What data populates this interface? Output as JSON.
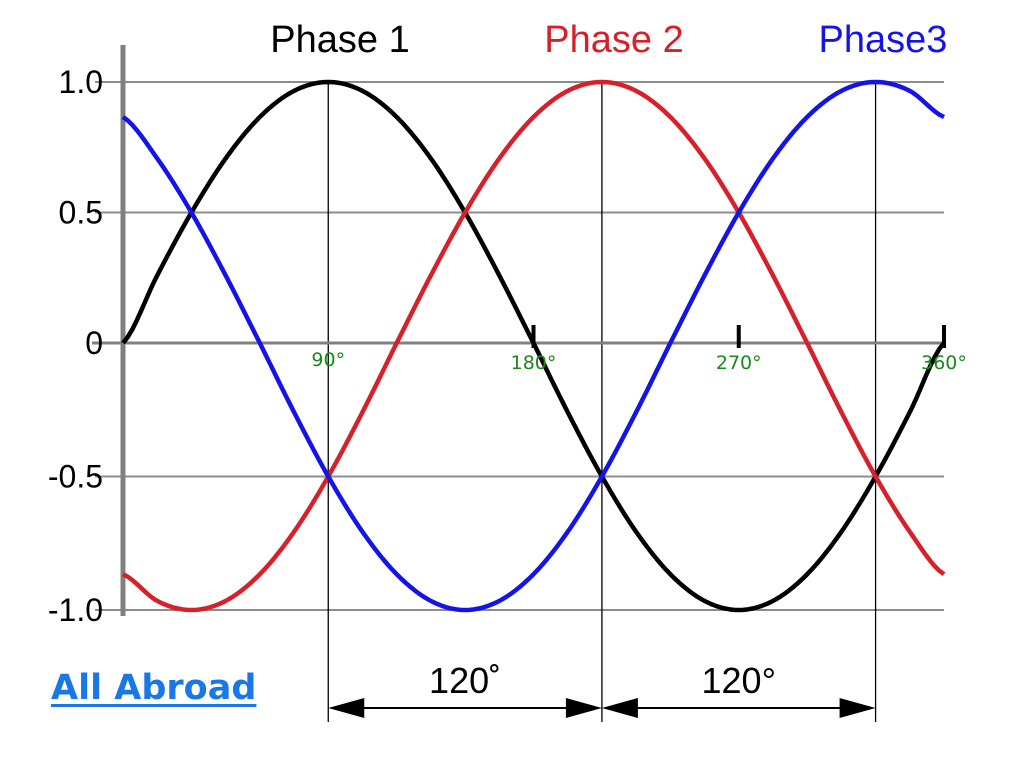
{
  "brand": {
    "link_text": "All Abroad"
  },
  "chart_data": {
    "type": "line",
    "title": "",
    "xlabel": "",
    "ylabel": "",
    "y_tick_labels": [
      "1.0",
      "0.5",
      "0",
      "-0.5",
      "-1.0"
    ],
    "y_ticks": [
      1.0,
      0.5,
      0,
      -0.5,
      -1.0
    ],
    "ylim": [
      -1.0,
      1.0
    ],
    "xlim": [
      0,
      360
    ],
    "x_ticks": [
      {
        "value": 90,
        "label": "90°"
      },
      {
        "value": 180,
        "label": "180°"
      },
      {
        "value": 270,
        "label": "270°"
      },
      {
        "value": 360,
        "label": "360°"
      }
    ],
    "grid": true,
    "legend_position": "top",
    "x": [
      0,
      15,
      30,
      45,
      60,
      75,
      90,
      105,
      120,
      135,
      150,
      165,
      180,
      195,
      210,
      225,
      240,
      255,
      270,
      285,
      300,
      315,
      330,
      345,
      360
    ],
    "series": [
      {
        "name": "Phase 1",
        "color": "#000000",
        "values": [
          0,
          0.259,
          0.5,
          0.707,
          0.866,
          0.966,
          1,
          0.966,
          0.866,
          0.707,
          0.5,
          0.259,
          0,
          -0.259,
          -0.5,
          -0.707,
          -0.866,
          -0.966,
          -1,
          -0.966,
          -0.866,
          -0.707,
          -0.5,
          -0.259,
          0
        ]
      },
      {
        "name": "Phase 2",
        "color": "#d6202a",
        "values": [
          -0.866,
          -0.966,
          -1,
          -0.966,
          -0.866,
          -0.707,
          -0.5,
          -0.259,
          0,
          0.259,
          0.5,
          0.707,
          0.866,
          0.966,
          1,
          0.966,
          0.866,
          0.707,
          0.5,
          0.259,
          0,
          -0.259,
          -0.5,
          -0.707,
          -0.866
        ]
      },
      {
        "name": "Phase3",
        "color": "#1414e6",
        "values": [
          0.866,
          0.707,
          0.5,
          0.259,
          0,
          -0.259,
          -0.5,
          -0.707,
          -0.866,
          -0.966,
          -1,
          -0.966,
          -0.866,
          -0.707,
          -0.5,
          -0.259,
          0,
          0.259,
          0.5,
          0.707,
          0.866,
          0.966,
          1,
          0.966,
          0.866
        ]
      }
    ],
    "markers": [
      90,
      210,
      330
    ],
    "annotations": [
      {
        "label": "120˚",
        "from": 90,
        "to": 210
      },
      {
        "label": "120°",
        "from": 210,
        "to": 330
      }
    ]
  }
}
